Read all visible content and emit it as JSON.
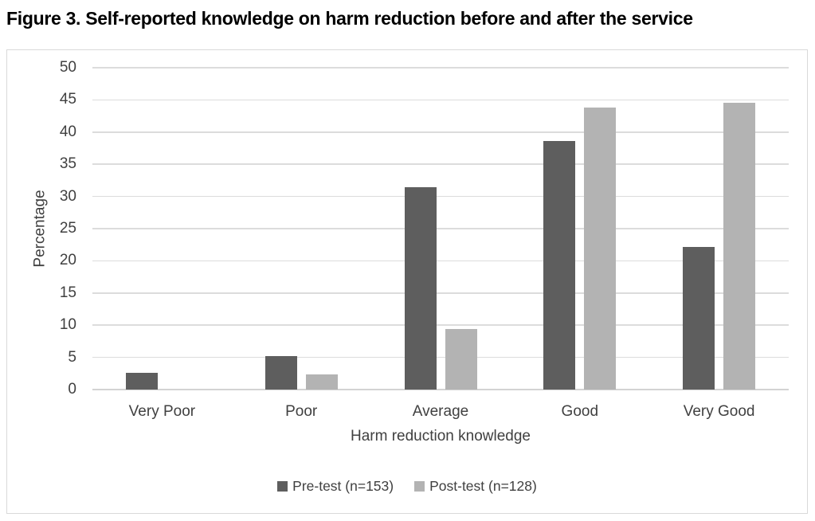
{
  "figure": {
    "title": "Figure 3. Self-reported knowledge on harm reduction before and after the service"
  },
  "chart_data": {
    "type": "bar",
    "title": "Figure 3. Self-reported knowledge on harm reduction before and after the service",
    "categories": [
      "Very Poor",
      "Poor",
      "Average",
      "Good",
      "Very Good"
    ],
    "series": [
      {
        "name": "Pre-test (n=153)",
        "color": "#5e5e5e",
        "values": [
          2.6,
          5.2,
          31.4,
          38.6,
          22.2
        ]
      },
      {
        "name": "Post-test (n=128)",
        "color": "#b3b3b3",
        "values": [
          0,
          2.3,
          9.4,
          43.8,
          44.5
        ]
      }
    ],
    "xlabel": "Harm reduction knowledge",
    "ylabel": "Percentage",
    "ylim": [
      0,
      50
    ],
    "ytick_step": 5,
    "grid": true,
    "legend_position": "bottom",
    "colors": {
      "grid": "#dcdcdc",
      "axis": "#d3d3d3",
      "text": "#404040",
      "chart_border": "#d9d9d9",
      "background": "#ffffff"
    }
  }
}
